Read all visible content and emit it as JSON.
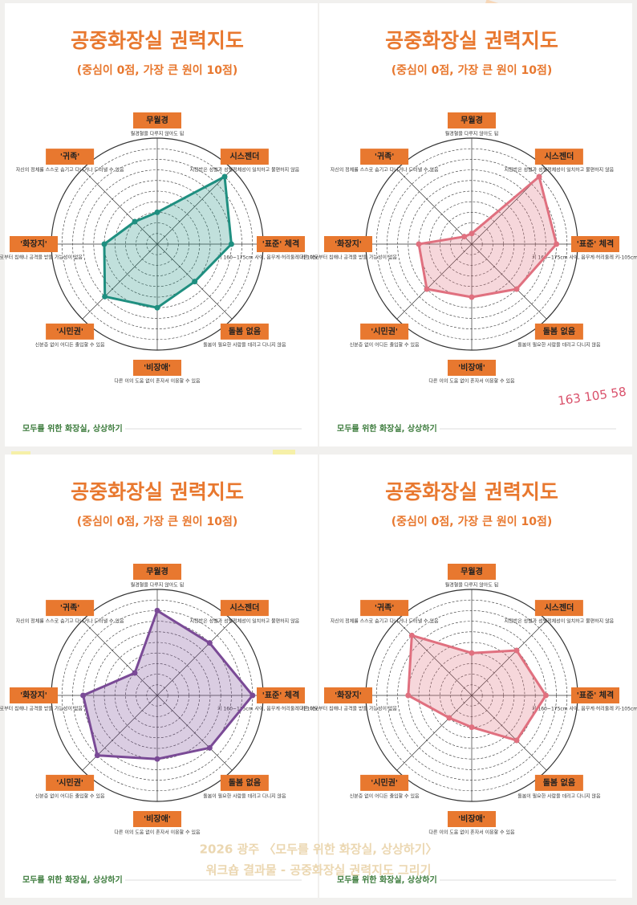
{
  "chart_data": [
    {
      "type": "radar",
      "title": "공중화장실 권력지도",
      "subtitle": "(중심이 0점, 가장 큰 원이 10점)",
      "categories": [
        "무월경",
        "시스젠더",
        "'표준' 체격",
        "돌봄 없음",
        "'비장애'",
        "'시민권'",
        "'화장지'",
        "'귀족'"
      ],
      "descriptions": [
        "월경혈을 다루지 않아도 됨",
        "지정받은 성별과 성별정체성이 일치하고 불편하지 않음",
        "키 160~175cm 사이, 몸무게·허리둘레 키-105cm 보다 적음",
        "돌봄이 필요한 사람을 데리고 다니지 않음",
        "다른 이의 도움 없이 혼자서 이용할 수 있음",
        "신분증 없이 어디든 출입할 수 있음",
        "다른 이로부터 침해나 공격을 받을 가능성이 없음",
        "자신의 정체를 스스로 숨기고 다니거나 드러낼 수 있음"
      ],
      "values": [
        3,
        9,
        7,
        5,
        6,
        7,
        5,
        3
      ],
      "color": "#1f8f80",
      "rlim": [
        0,
        10
      ],
      "footer": "모두를 위한 화장실, 상상하기"
    },
    {
      "type": "radar",
      "title": "공중화장실 권력지도",
      "subtitle": "(중심이 0점, 가장 큰 원이 10점)",
      "categories": [
        "무월경",
        "시스젠더",
        "'표준' 체격",
        "돌봄 없음",
        "'비장애'",
        "'시민권'",
        "'화장지'",
        "'귀족'"
      ],
      "descriptions": [
        "월경혈을 다루지 않아도 됨",
        "지정받은 성별과 성별정체성이 일치하고 불편하지 않음",
        "키 160~175cm 사이, 몸무게·허리둘레 키-105cm 보다 적음",
        "돌봄이 필요한 사람을 데리고 다니지 않음",
        "다른 이의 도움 없이 혼자서 이용할 수 있음",
        "신분증 없이 어디든 출입할 수 있음",
        "다른 이로부터 침해나 공격을 받을 가능성이 없음",
        "자신의 정체를 스스로 숨기고 다니거나 드러낼 수 있음"
      ],
      "values": [
        1,
        9,
        8,
        6,
        5,
        6,
        5,
        1
      ],
      "color": "#e0707f",
      "rlim": [
        0,
        10
      ],
      "annotation": "163 105 58",
      "footer": "모두를 위한 화장실, 상상하기"
    },
    {
      "type": "radar",
      "title": "공중화장실 권력지도",
      "subtitle": "(중심이 0점, 가장 큰 원이 10점)",
      "categories": [
        "무월경",
        "시스젠더",
        "'표준' 체격",
        "돌봄 없음",
        "'비장애'",
        "'시민권'",
        "'화장지'",
        "'귀족'"
      ],
      "descriptions": [
        "월경혈을 다루지 않아도 됨",
        "지정받은 성별과 성별정체성이 일치하고 불편하지 않음",
        "키 160~175cm 사이, 몸무게·허리둘레 키-105cm 보다 적음",
        "돌봄이 필요한 사람을 데리고 다니지 않음",
        "다른 이의 도움 없이 혼자서 이용할 수 있음",
        "신분증 없이 어디든 출입할 수 있음",
        "다른 이로부터 침해나 공격을 받을 가능성이 없음",
        "자신의 정체를 스스로 숨기고 다니거나 드러낼 수 있음"
      ],
      "values": [
        8,
        7,
        9,
        7,
        6,
        8,
        7,
        3
      ],
      "color": "#7a4a96",
      "rlim": [
        0,
        10
      ],
      "footer": "모두를 위한 화장실, 상상하기"
    },
    {
      "type": "radar",
      "title": "공중화장실 권력지도",
      "subtitle": "(중심이 0점, 가장 큰 원이 10점)",
      "categories": [
        "무월경",
        "시스젠더",
        "'표준' 체격",
        "돌봄 없음",
        "'비장애'",
        "'시민권'",
        "'화장지'",
        "'귀족'"
      ],
      "descriptions": [
        "월경혈을 다루지 않아도 됨",
        "지정받은 성별과 성별정체성이 일치하고 불편하지 않음",
        "키 160~175cm 사이, 몸무게·허리둘레 키-105cm 보다 적음",
        "돌봄이 필요한 사람을 데리고 다니지 않음",
        "다른 이의 도움 없이 혼자서 이용할 수 있음",
        "신분증 없이 어디든 출입할 수 있음",
        "다른 이로부터 침해나 공격을 받을 가능성이 없음",
        "자신의 정체를 스스로 숨기고 다니거나 드러낼 수 있음"
      ],
      "values": [
        4,
        6,
        7,
        6,
        3,
        3,
        6,
        8
      ],
      "color": "#e0707f",
      "rlim": [
        0,
        10
      ],
      "footer": "모두를 위한 화장실, 상상하기"
    }
  ],
  "caption": [
    "2026 광주 〈모두를 위한 화장실, 상상하기〉",
    "워크숍 결과물 - 공중화장실 권력지도 그리기"
  ]
}
